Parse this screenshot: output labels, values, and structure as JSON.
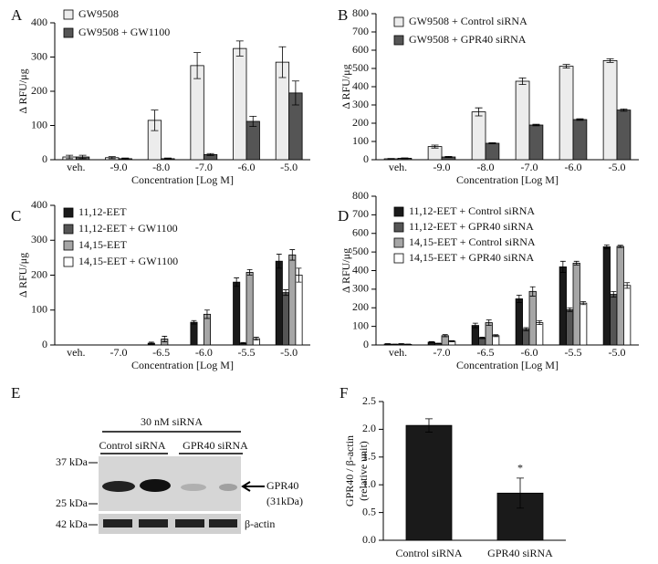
{
  "chart_data": [
    {
      "type": "bar",
      "panel": "A",
      "ylabel": "Δ RFU/μg",
      "xlabel": "Concentration [Log M]",
      "categories": [
        "veh.",
        "-9.0",
        "-8.0",
        "-7.0",
        "-6.0",
        "-5.0"
      ],
      "series": [
        {
          "name": "GW9508",
          "color": "#ececec",
          "values": [
            8,
            6,
            115,
            275,
            325,
            285
          ],
          "errors": [
            5,
            3,
            30,
            38,
            22,
            45
          ]
        },
        {
          "name": "GW9508 + GW1100",
          "color": "#555555",
          "values": [
            8,
            3,
            3,
            15,
            112,
            195
          ],
          "errors": [
            5,
            2,
            2,
            3,
            15,
            35
          ]
        }
      ],
      "ylim": [
        0,
        400
      ],
      "yticks": [
        0,
        100,
        200,
        300,
        400
      ]
    },
    {
      "type": "bar",
      "panel": "B",
      "ylabel": "Δ RFU/μg",
      "xlabel": "Concentration [Log M]",
      "categories": [
        "veh.",
        "-9.0",
        "-8.0",
        "-7.0",
        "-6.0",
        "-5.0"
      ],
      "series": [
        {
          "name": "GW9508 + Control siRNA",
          "color": "#ececec",
          "values": [
            5,
            72,
            262,
            430,
            512,
            543
          ],
          "errors": [
            2,
            8,
            22,
            18,
            10,
            10
          ]
        },
        {
          "name": "GW9508 + GPR40 siRNA",
          "color": "#555555",
          "values": [
            8,
            15,
            90,
            190,
            220,
            272
          ],
          "errors": [
            2,
            3,
            3,
            4,
            4,
            6
          ]
        }
      ],
      "ylim": [
        0,
        800
      ],
      "yticks": [
        0,
        100,
        200,
        300,
        400,
        500,
        600,
        700,
        800
      ]
    },
    {
      "type": "bar",
      "panel": "C",
      "ylabel": "Δ RFU/μg",
      "xlabel": "Concentration [Log M]",
      "categories": [
        "veh.",
        "-7.0",
        "-6.5",
        "-6.0",
        "-5.5",
        "-5.0"
      ],
      "series": [
        {
          "name": "11,12-EET",
          "color": "#1a1a1a",
          "values": [
            0,
            0,
            5,
            65,
            180,
            240
          ],
          "errors": [
            0,
            0,
            3,
            5,
            12,
            20
          ]
        },
        {
          "name": "11,12-EET + GW1100",
          "color": "#555555",
          "values": [
            0,
            0,
            0,
            0,
            5,
            150
          ],
          "errors": [
            0,
            0,
            0,
            0,
            2,
            8
          ]
        },
        {
          "name": "14,15-EET",
          "color": "#a6a6a6",
          "values": [
            0,
            0,
            17,
            88,
            208,
            258
          ],
          "errors": [
            0,
            0,
            8,
            12,
            8,
            15
          ]
        },
        {
          "name": "14,15-EET + GW1100",
          "color": "#ffffff",
          "values": [
            0,
            0,
            0,
            0,
            18,
            200
          ],
          "errors": [
            0,
            0,
            0,
            0,
            4,
            20
          ]
        }
      ],
      "ylim": [
        0,
        400
      ],
      "yticks": [
        0,
        100,
        200,
        300,
        400
      ]
    },
    {
      "type": "bar",
      "panel": "D",
      "ylabel": "Δ RFU/μg",
      "xlabel": "Concentration [Log M]",
      "categories": [
        "veh.",
        "-7.0",
        "-6.5",
        "-6.0",
        "-5.5",
        "-5.0"
      ],
      "series": [
        {
          "name": "11,12-EET + Control siRNA",
          "color": "#1a1a1a",
          "values": [
            5,
            15,
            105,
            248,
            420,
            528
          ],
          "errors": [
            2,
            3,
            12,
            20,
            30,
            10
          ]
        },
        {
          "name": "11,12-EET + GPR40 siRNA",
          "color": "#555555",
          "values": [
            3,
            8,
            38,
            85,
            190,
            272
          ],
          "errors": [
            2,
            2,
            4,
            8,
            10,
            15
          ]
        },
        {
          "name": "14,15-EET + Control siRNA",
          "color": "#a6a6a6",
          "values": [
            5,
            50,
            120,
            288,
            440,
            530
          ],
          "errors": [
            2,
            6,
            15,
            25,
            10,
            6
          ]
        },
        {
          "name": "14,15-EET + GPR40 siRNA",
          "color": "#ffffff",
          "values": [
            3,
            20,
            50,
            120,
            225,
            320
          ],
          "errors": [
            2,
            3,
            5,
            10,
            8,
            15
          ]
        }
      ],
      "ylim": [
        0,
        800
      ],
      "yticks": [
        0,
        100,
        200,
        300,
        400,
        500,
        600,
        700,
        800
      ]
    },
    {
      "type": "bar",
      "panel": "F",
      "ylabel": [
        "GPR40 / β-actin",
        "(relative unit)"
      ],
      "categories": [
        "Control siRNA",
        "GPR40 siRNA"
      ],
      "color": "#1a1a1a",
      "values": [
        2.07,
        0.85
      ],
      "errors": [
        0.12,
        0.27
      ],
      "annotation": "*",
      "ylim": [
        0,
        2.5
      ],
      "yticks": [
        {
          "value": 0,
          "label": "0.0"
        },
        0.5,
        {
          "value": 1,
          "label": "1.0"
        },
        1.5,
        {
          "value": 2,
          "label": "2.0"
        },
        2.5
      ]
    }
  ],
  "blot": {
    "panel": "E",
    "title": "30 nM siRNA",
    "groups": [
      "Control siRNA",
      "GPR40 siRNA"
    ],
    "markers": [
      "37 kDa",
      "25 kDa",
      "42 kDa"
    ],
    "band_label": "GPR40",
    "band_size": "(31kDa)",
    "loading_label": "β-actin"
  }
}
